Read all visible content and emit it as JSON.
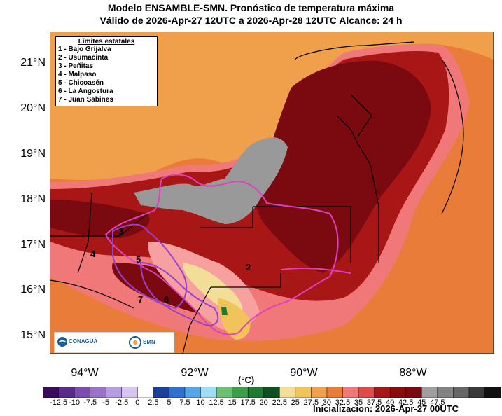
{
  "header": {
    "title": "Modelo ENSAMBLE-SMN. Pronóstico de temperatura máxima",
    "subtitle": "Válido de 2026-Apr-27 12UTC a 2026-Apr-28 12UTC    Alcance: 24 h"
  },
  "axes": {
    "lat_labels": [
      "21°N",
      "20°N",
      "19°N",
      "18°N",
      "17°N",
      "16°N",
      "15°N"
    ],
    "lon_labels": [
      "94°W",
      "92°W",
      "90°W",
      "88°W"
    ]
  },
  "legend": {
    "title": "Límites estatales",
    "items": [
      "1 - Bajo Grijalva",
      "2 - Usumacinta",
      "3 - Peñitas",
      "4 - Malpaso",
      "5 - Chicoasén",
      "6 - La Angostura",
      "7 - Juan Sabines"
    ]
  },
  "basin_numbers": [
    "3",
    "4",
    "5",
    "2",
    "7",
    "6"
  ],
  "logos": {
    "conagua": "CONAGUA",
    "smn": "SMN"
  },
  "colorbar": {
    "unit": "(°C)",
    "ticks": [
      "-12.5",
      "-10",
      "-7.5",
      "-5",
      "-2.5",
      "0",
      "2.5",
      "5",
      "7.5",
      "10",
      "12.5",
      "15",
      "17.5",
      "20",
      "22.5",
      "25",
      "27.5",
      "30",
      "32.5",
      "35",
      "37.5",
      "40",
      "42.5",
      "45",
      "47.5"
    ],
    "colors": [
      "#3b0a5c",
      "#5a2a8a",
      "#7b4bb0",
      "#9a72c8",
      "#b79be0",
      "#d7c4f0",
      "#ffffff",
      "#1c3f9c",
      "#2e6fd0",
      "#55a6e8",
      "#9fdcf5",
      "#6dbf74",
      "#3d9e4a",
      "#1f7a32",
      "#0f5020",
      "#f2de96",
      "#f2c35a",
      "#f0a04a",
      "#ea7c3a",
      "#f07878",
      "#e04a4a",
      "#a81616",
      "#8a0d0d",
      "#7a0a10",
      "#9e9e9e",
      "#828282",
      "#666666",
      "#3a3a3a",
      "#111111"
    ]
  },
  "footer": {
    "initialization": "Inicializacion: 2026-Apr-27 00UTC"
  },
  "map_colors": {
    "ocean": "#f0a04a",
    "hot": "#a81616",
    "very_hot": "#7a0a10",
    "warm": "#ea7c3a",
    "pink": "#f07878",
    "light_pink": "#f6a0a0",
    "yellow": "#f2de96",
    "no_data": "#999999",
    "basin": "#e040c0",
    "basin_dark": "#9a40d0"
  }
}
